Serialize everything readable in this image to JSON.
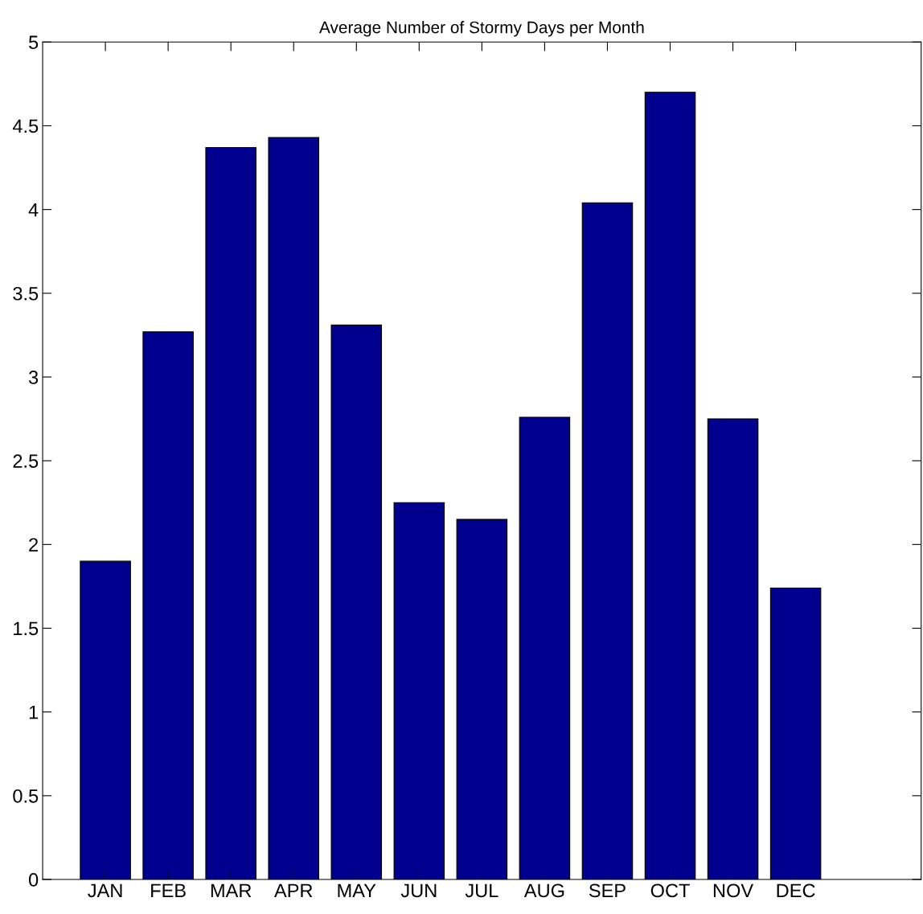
{
  "chart_data": {
    "type": "bar",
    "title": "Average Number of Stormy Days per Month",
    "categories": [
      "JAN",
      "FEB",
      "MAR",
      "APR",
      "MAY",
      "JUN",
      "JUL",
      "AUG",
      "SEP",
      "OCT",
      "NOV",
      "DEC"
    ],
    "values": [
      1.9,
      3.27,
      4.37,
      4.43,
      3.31,
      2.25,
      2.15,
      2.76,
      4.04,
      4.7,
      2.75,
      1.74
    ],
    "color": "#00008f",
    "ylim": [
      0,
      5
    ],
    "yticks": [
      0,
      0.5,
      1,
      1.5,
      2,
      2.5,
      3,
      3.5,
      4,
      4.5,
      5
    ],
    "grid": false,
    "legend": false
  }
}
